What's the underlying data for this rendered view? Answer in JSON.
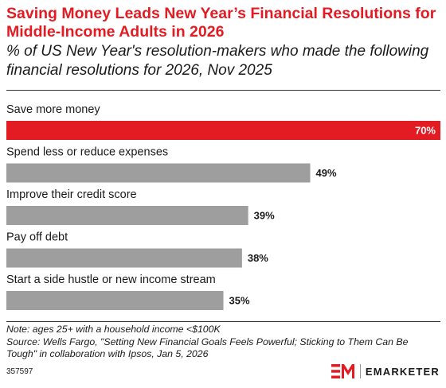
{
  "header": {
    "title": "Saving Money Leads New Year’s Financial Resolutions for Middle-Income Adults in 2026",
    "subtitle": "% of US New Year's resolution-makers who made the following financial resolutions for 2026, Nov 2025"
  },
  "chart_data": {
    "type": "bar",
    "orientation": "horizontal",
    "categories": [
      "Save more money",
      "Spend less or reduce expenses",
      "Improve their credit score",
      "Pay off debt",
      "Start a side hustle or new income stream"
    ],
    "values": [
      70,
      49,
      39,
      38,
      35
    ],
    "value_labels": [
      "70%",
      "49%",
      "39%",
      "38%",
      "35%"
    ],
    "xlim": [
      0,
      70
    ],
    "highlight_index": 0,
    "colors": {
      "highlight": "#e31b23",
      "default": "#9e9e9e",
      "highlight_label": "#ffffff",
      "default_label": "#1a1a1a"
    }
  },
  "footer": {
    "note": "Note: ages 25+ with a household income <$100K",
    "source": "Source: Wells Fargo, \"Setting New Financial Goals Feels Powerful; Sticking to Them Can Be Tough\" in collaboration with Ipsos, Jan 5, 2026",
    "chart_id": "357597",
    "brand": "EMARKETER",
    "brand_color": "#e31b23"
  }
}
